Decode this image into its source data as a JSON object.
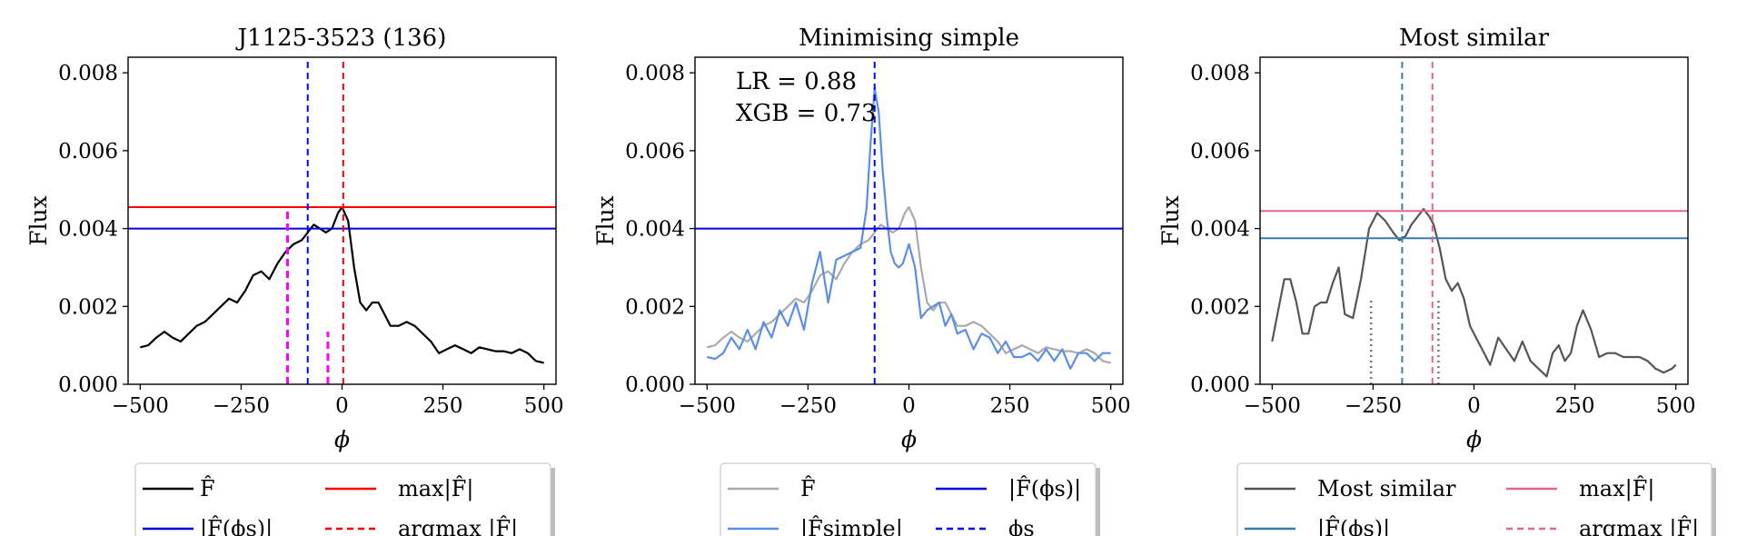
{
  "chart_data": [
    {
      "type": "line",
      "title": "J1125-3523 (136)",
      "xlabel": "ϕ",
      "ylabel": "Flux",
      "xlim": [
        -530,
        530
      ],
      "ylim": [
        0,
        0.0084
      ],
      "xticks": [
        -500,
        -250,
        0,
        250,
        500
      ],
      "xtick_labels": [
        "−500",
        "−250",
        "0",
        "250",
        "500"
      ],
      "yticks": [
        0,
        0.002,
        0.004,
        0.006,
        0.008
      ],
      "ytick_labels": [
        "0.000",
        "0.002",
        "0.004",
        "0.006",
        "0.008"
      ],
      "series": [
        {
          "name": "F̂",
          "color": "#000000",
          "x": [
            -500,
            -480,
            -460,
            -440,
            -420,
            -400,
            -380,
            -360,
            -340,
            -320,
            -300,
            -280,
            -260,
            -240,
            -220,
            -200,
            -180,
            -160,
            -140,
            -120,
            -100,
            -85,
            -70,
            -55,
            -40,
            -25,
            -10,
            0,
            15,
            30,
            45,
            60,
            75,
            90,
            105,
            120,
            140,
            160,
            180,
            200,
            220,
            240,
            260,
            280,
            300,
            320,
            340,
            360,
            380,
            400,
            420,
            440,
            460,
            480,
            500
          ],
          "y": [
            0.00095,
            0.001,
            0.0012,
            0.00135,
            0.0012,
            0.0011,
            0.0013,
            0.0015,
            0.0016,
            0.0018,
            0.002,
            0.0022,
            0.0021,
            0.0024,
            0.0028,
            0.0029,
            0.0027,
            0.0031,
            0.0034,
            0.0036,
            0.0037,
            0.0039,
            0.0041,
            0.004,
            0.0039,
            0.004,
            0.0044,
            0.00455,
            0.0042,
            0.003,
            0.0021,
            0.0019,
            0.0021,
            0.0021,
            0.0018,
            0.0015,
            0.0015,
            0.0016,
            0.0015,
            0.0013,
            0.0011,
            0.0008,
            0.0009,
            0.001,
            0.0009,
            0.0008,
            0.00095,
            0.0009,
            0.00085,
            0.00085,
            0.0008,
            0.0009,
            0.0008,
            0.0006,
            0.00055
          ]
        }
      ],
      "hlines": [
        {
          "name": "max|F̂|",
          "y": 0.00455,
          "color": "#ff0000",
          "style": "solid"
        },
        {
          "name": "|F̂(ϕs)|",
          "y": 0.004,
          "color": "#0000dd",
          "style": "solid"
        }
      ],
      "vlines": [
        {
          "name": "argmax |F̂|",
          "x": 3,
          "color": "#ff0000",
          "style": "dashed"
        },
        {
          "x": -85,
          "color": "#0000ff",
          "style": "dashed"
        },
        {
          "x": -135,
          "ymax": 0.0045,
          "color": "#ff00ff",
          "style": "dashed-thick"
        },
        {
          "x": -35,
          "ymax": 0.00135,
          "color": "#ff00ff",
          "style": "dashed-thick"
        }
      ],
      "legend": {
        "placement": "below",
        "entries": [
          {
            "label": "F̂",
            "color": "#000000",
            "style": "solid"
          },
          {
            "label": "max|F̂|",
            "color": "#ff0000",
            "style": "solid"
          },
          {
            "label": "|F̂(ϕs)|",
            "color": "#0000dd",
            "style": "solid"
          },
          {
            "label": "argmax |F̂|",
            "color": "#ff0000",
            "style": "dashed"
          }
        ]
      }
    },
    {
      "type": "line",
      "title": "Minimising simple",
      "xlabel": "ϕ",
      "ylabel": "Flux",
      "xlim": [
        -530,
        530
      ],
      "ylim": [
        0,
        0.0084
      ],
      "xticks": [
        -500,
        -250,
        0,
        250,
        500
      ],
      "xtick_labels": [
        "−500",
        "−250",
        "0",
        "250",
        "500"
      ],
      "yticks": [
        0,
        0.002,
        0.004,
        0.006,
        0.008
      ],
      "ytick_labels": [
        "0.000",
        "0.002",
        "0.004",
        "0.006",
        "0.008"
      ],
      "annotations": [
        "LR = 0.88",
        "XGB = 0.73"
      ],
      "series": [
        {
          "name": "F̂",
          "color": "#aaaaaa",
          "x": [
            -500,
            -480,
            -460,
            -440,
            -420,
            -400,
            -380,
            -360,
            -340,
            -320,
            -300,
            -280,
            -260,
            -240,
            -220,
            -200,
            -180,
            -160,
            -140,
            -120,
            -100,
            -85,
            -70,
            -55,
            -40,
            -25,
            -10,
            0,
            15,
            30,
            45,
            60,
            75,
            90,
            105,
            120,
            140,
            160,
            180,
            200,
            220,
            240,
            260,
            280,
            300,
            320,
            340,
            360,
            380,
            400,
            420,
            440,
            460,
            480,
            500
          ],
          "y": [
            0.00095,
            0.001,
            0.0012,
            0.00135,
            0.0012,
            0.0011,
            0.0013,
            0.0015,
            0.0016,
            0.0018,
            0.002,
            0.0022,
            0.0021,
            0.0024,
            0.0028,
            0.0029,
            0.0027,
            0.0031,
            0.0034,
            0.0036,
            0.0037,
            0.0039,
            0.0041,
            0.004,
            0.0039,
            0.004,
            0.0044,
            0.00455,
            0.0042,
            0.003,
            0.0021,
            0.0019,
            0.0021,
            0.0021,
            0.0018,
            0.0015,
            0.0015,
            0.0016,
            0.0015,
            0.0013,
            0.0011,
            0.0008,
            0.0009,
            0.001,
            0.0009,
            0.0008,
            0.00095,
            0.0009,
            0.00085,
            0.00085,
            0.0008,
            0.0009,
            0.0008,
            0.0006,
            0.00055
          ]
        },
        {
          "name": "|F̂simple|",
          "color": "#5b8fe6",
          "x": [
            -500,
            -480,
            -460,
            -440,
            -420,
            -400,
            -380,
            -360,
            -340,
            -320,
            -300,
            -280,
            -260,
            -240,
            -220,
            -200,
            -180,
            -160,
            -140,
            -120,
            -105,
            -95,
            -85,
            -75,
            -65,
            -55,
            -45,
            -35,
            -25,
            -15,
            0,
            15,
            30,
            45,
            60,
            75,
            90,
            105,
            120,
            140,
            160,
            180,
            200,
            220,
            240,
            260,
            280,
            300,
            320,
            340,
            360,
            380,
            400,
            420,
            440,
            460,
            480,
            500
          ],
          "y": [
            0.0007,
            0.00065,
            0.0008,
            0.0012,
            0.0009,
            0.0014,
            0.0009,
            0.0016,
            0.0012,
            0.0019,
            0.0015,
            0.0021,
            0.0014,
            0.0026,
            0.0034,
            0.0021,
            0.0032,
            0.0033,
            0.0034,
            0.0035,
            0.0045,
            0.0062,
            0.0076,
            0.007,
            0.0055,
            0.0043,
            0.0034,
            0.0031,
            0.003,
            0.0031,
            0.0036,
            0.003,
            0.0017,
            0.0019,
            0.002,
            0.0021,
            0.0015,
            0.0018,
            0.0013,
            0.0014,
            0.0009,
            0.0013,
            0.0012,
            0.0008,
            0.0011,
            0.0007,
            0.0007,
            0.0008,
            0.0006,
            0.0009,
            0.0006,
            0.0009,
            0.0004,
            0.0008,
            0.0008,
            0.0006,
            0.0008,
            0.0008
          ]
        }
      ],
      "hlines": [
        {
          "name": "|F̂(ϕs)|",
          "y": 0.004,
          "color": "#0000dd",
          "style": "solid"
        }
      ],
      "vlines": [
        {
          "name": "ϕs",
          "x": -85,
          "color": "#0000ff",
          "style": "dashed"
        }
      ],
      "legend": {
        "placement": "below",
        "entries": [
          {
            "label": "F̂",
            "color": "#aaaaaa",
            "style": "solid"
          },
          {
            "label": "|F̂(ϕs)|",
            "color": "#0000dd",
            "style": "solid"
          },
          {
            "label": "|F̂simple|",
            "color": "#5b8fe6",
            "style": "solid"
          },
          {
            "label": "ϕs",
            "color": "#0000ff",
            "style": "dashed"
          }
        ]
      }
    },
    {
      "type": "line",
      "title": "Most similar",
      "xlabel": "ϕ",
      "ylabel": "Flux",
      "xlim": [
        -530,
        530
      ],
      "ylim": [
        0,
        0.0084
      ],
      "xticks": [
        -500,
        -250,
        0,
        250,
        500
      ],
      "xtick_labels": [
        "−500",
        "−250",
        "0",
        "250",
        "500"
      ],
      "yticks": [
        0,
        0.002,
        0.004,
        0.006,
        0.008
      ],
      "ytick_labels": [
        "0.000",
        "0.002",
        "0.004",
        "0.006",
        "0.008"
      ],
      "series": [
        {
          "name": "Most similar",
          "color": "#555555",
          "x": [
            -500,
            -485,
            -470,
            -455,
            -440,
            -425,
            -410,
            -395,
            -380,
            -365,
            -350,
            -335,
            -320,
            -300,
            -280,
            -260,
            -240,
            -220,
            -200,
            -185,
            -170,
            -155,
            -140,
            -125,
            -110,
            -100,
            -85,
            -70,
            -55,
            -40,
            -25,
            -10,
            5,
            20,
            40,
            60,
            80,
            100,
            120,
            140,
            160,
            180,
            195,
            210,
            225,
            240,
            255,
            270,
            290,
            310,
            330,
            350,
            370,
            390,
            410,
            430,
            450,
            470,
            490,
            500
          ],
          "y": [
            0.0011,
            0.0019,
            0.0027,
            0.0027,
            0.0021,
            0.0013,
            0.0013,
            0.002,
            0.0021,
            0.0021,
            0.0026,
            0.003,
            0.0018,
            0.0017,
            0.0027,
            0.004,
            0.0044,
            0.0042,
            0.0039,
            0.0037,
            0.0038,
            0.0041,
            0.0043,
            0.0045,
            0.0043,
            0.0041,
            0.0035,
            0.0027,
            0.0024,
            0.0026,
            0.0022,
            0.0015,
            0.0012,
            0.0009,
            0.0005,
            0.0012,
            0.0009,
            0.0006,
            0.0011,
            0.0006,
            0.0004,
            0.0002,
            0.0008,
            0.001,
            0.0006,
            0.0008,
            0.0015,
            0.0019,
            0.0014,
            0.0007,
            0.0008,
            0.0008,
            0.0007,
            0.0007,
            0.0007,
            0.0006,
            0.0004,
            0.0003,
            0.0004,
            0.0005
          ]
        }
      ],
      "hlines": [
        {
          "name": "max|F̂|",
          "y": 0.00445,
          "color": "#e1668c",
          "style": "solid"
        },
        {
          "name": "|F̂(ϕs)|",
          "y": 0.00375,
          "color": "#3a7ca8",
          "style": "solid"
        }
      ],
      "vlines": [
        {
          "name": "argmax |F̂|",
          "x": -103,
          "color": "#e1668c",
          "style": "dashed"
        },
        {
          "x": -178,
          "color": "#3a7ca8",
          "style": "dashed"
        },
        {
          "x": -255,
          "ymax": 0.00215,
          "color": "#777777",
          "style": "dotted"
        },
        {
          "x": -88,
          "ymax": 0.00215,
          "color": "#777777",
          "style": "dotted"
        }
      ],
      "legend": {
        "placement": "below",
        "entries": [
          {
            "label": "Most similar",
            "color": "#555555",
            "style": "solid"
          },
          {
            "label": "max|F̂|",
            "color": "#e1668c",
            "style": "solid"
          },
          {
            "label": "|F̂(ϕs)|",
            "color": "#3a7ca8",
            "style": "solid"
          },
          {
            "label": "argmax |F̂|",
            "color": "#e1668c",
            "style": "dashed"
          }
        ]
      }
    }
  ]
}
